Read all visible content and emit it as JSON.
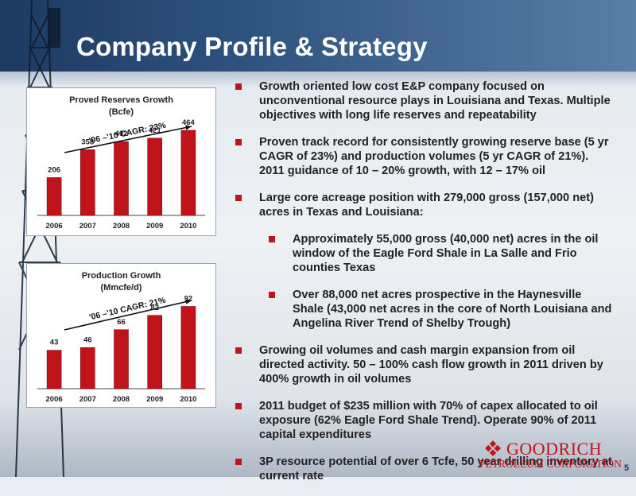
{
  "slide": {
    "title": "Company Profile & Strategy",
    "page_number": "5",
    "accent_color": "#c0141a",
    "header_color": "#1d3a60"
  },
  "logo": {
    "name": "GOODRICH",
    "subtitle": "PETROLEUM CORPORATION",
    "icon": "diamond-grid-logo-icon"
  },
  "bullets": [
    {
      "level": 1,
      "text": "Growth oriented low cost E&P company focused on unconventional resource plays in Louisiana and Texas. Multiple objectives with long life reserves and repeatability"
    },
    {
      "level": 1,
      "text": "Proven track record for consistently growing reserve base (5 yr CAGR of 23%) and production volumes (5 yr CAGR of 21%).  2011 guidance of 10 – 20% growth, with 12 – 17% oil"
    },
    {
      "level": 1,
      "text": "Large core acreage position with 279,000 gross (157,000 net) acres in Texas and Louisiana:"
    },
    {
      "level": 2,
      "text": "Approximately 55,000 gross (40,000 net) acres in the oil window of the Eagle Ford Shale in La Salle and Frio counties Texas"
    },
    {
      "level": 2,
      "text": "Over 88,000 net acres prospective in the Haynesville Shale (43,000 net acres in the core of North Louisiana and Angelina River Trend of Shelby Trough)"
    },
    {
      "level": 1,
      "text": "Growing oil volumes and cash margin expansion from oil directed activity.  50 – 100% cash flow growth in 2011 driven by 400% growth in oil volumes"
    },
    {
      "level": 1,
      "text": "2011 budget of $235 million with 70% of capex allocated to oil exposure (62% Eagle Ford Shale Trend).  Operate 90% of 2011 capital expenditures"
    },
    {
      "level": 1,
      "text": "3P resource potential of over 6 Tcfe, 50 year drilling inventory at current rate"
    }
  ],
  "chart_data": [
    {
      "type": "bar",
      "title": "Proved Reserves Growth",
      "subtitle": "(Bcfe)",
      "annotation": "'06 –'10 CAGR: 23%",
      "categories": [
        "2006",
        "2007",
        "2008",
        "2009",
        "2010"
      ],
      "values": [
        206,
        358,
        402,
        421,
        464
      ],
      "ylim": [
        0,
        520
      ],
      "bar_color": "#c0141a",
      "grid": false
    },
    {
      "type": "bar",
      "title": "Production Growth",
      "subtitle": "(Mmcfe/d)",
      "annotation": "'06 –'10 CAGR: 21%",
      "categories": [
        "2006",
        "2007",
        "2008",
        "2009",
        "2010"
      ],
      "values": [
        43,
        46,
        66,
        82,
        92
      ],
      "ylim": [
        0,
        104
      ],
      "bar_color": "#c0141a",
      "grid": false
    }
  ]
}
